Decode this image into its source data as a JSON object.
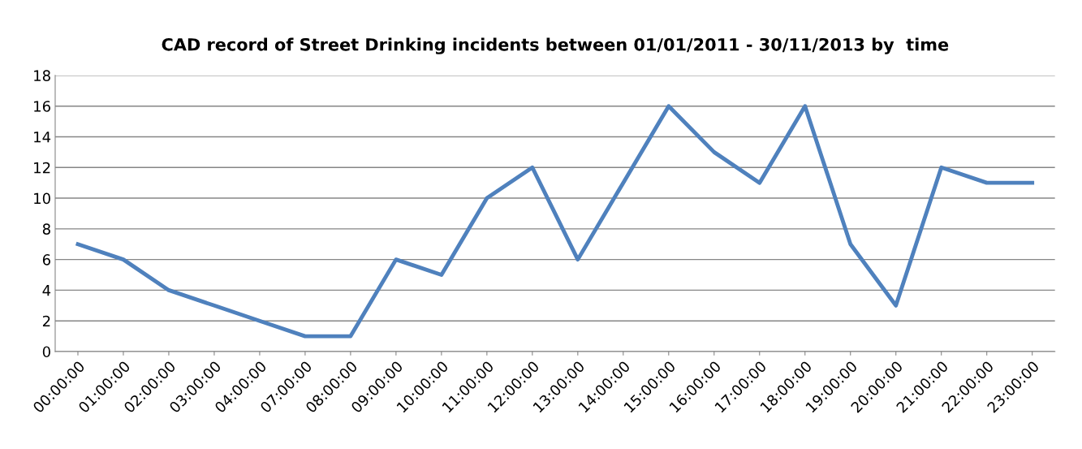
{
  "chart_data": {
    "type": "line",
    "title": "CAD record of Street Drinking incidents between 01/01/2011 - 30/11/2013 by  time",
    "categories": [
      "00:00:00",
      "01:00:00",
      "02:00:00",
      "03:00:00",
      "04:00:00",
      "07:00:00",
      "08:00:00",
      "09:00:00",
      "10:00:00",
      "11:00:00",
      "12:00:00",
      "13:00:00",
      "14:00:00",
      "15:00:00",
      "16:00:00",
      "17:00:00",
      "18:00:00",
      "19:00:00",
      "20:00:00",
      "21:00:00",
      "22:00:00",
      "23:00:00"
    ],
    "series": [
      {
        "color": "#4f81bd",
        "values": [
          7,
          6,
          4,
          3,
          2,
          1,
          1,
          6,
          5,
          10,
          12,
          6,
          11,
          16,
          13,
          11,
          16,
          7,
          3,
          12,
          11,
          11
        ]
      }
    ],
    "ylim": [
      0,
      18
    ],
    "yticks": [
      0,
      2,
      4,
      6,
      8,
      10,
      12,
      14,
      16,
      18
    ],
    "grid": "y",
    "marker": "none",
    "line_style": "solid"
  }
}
